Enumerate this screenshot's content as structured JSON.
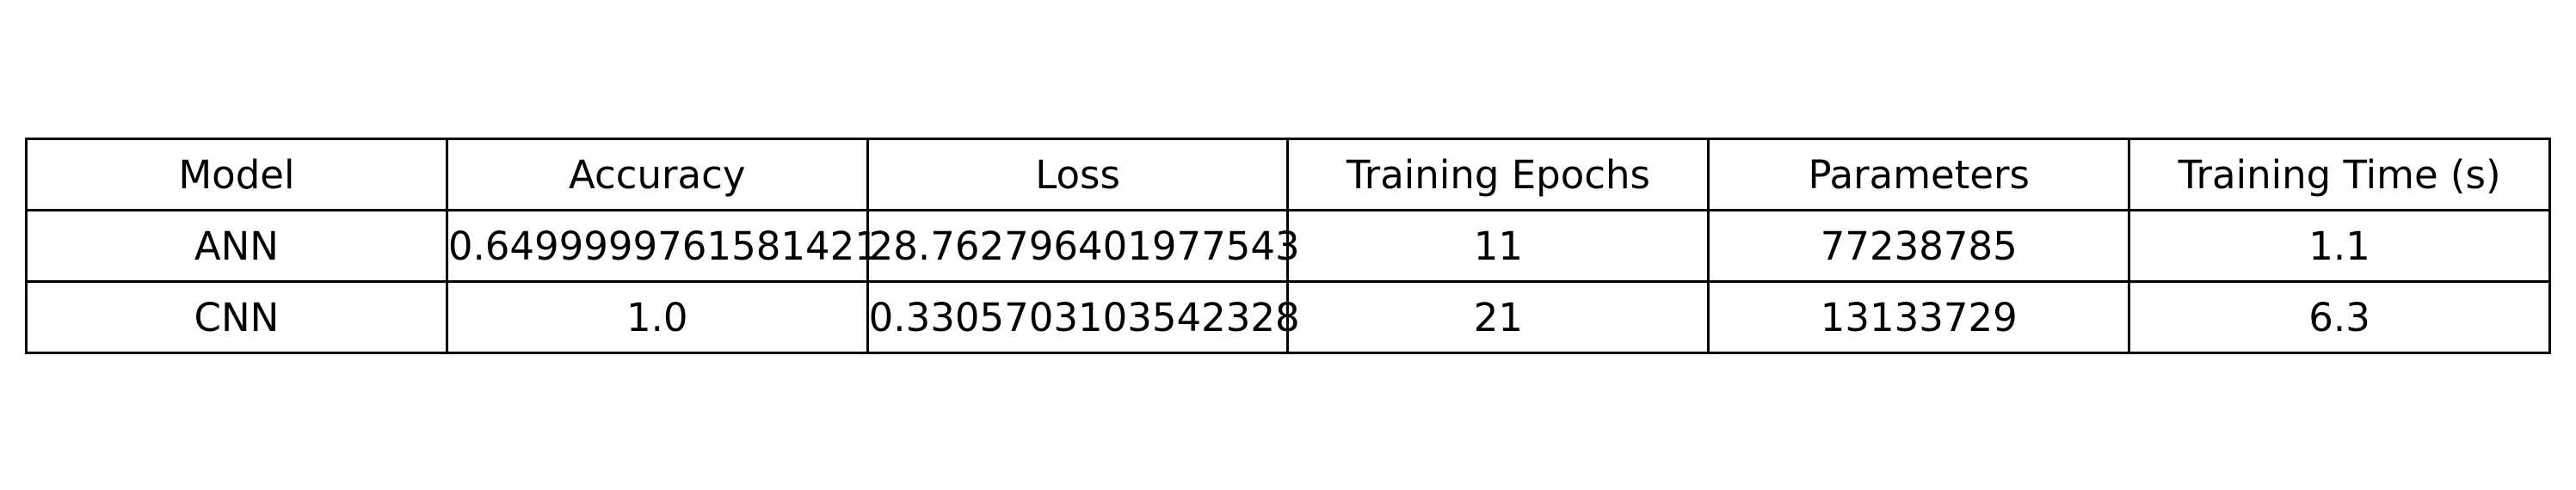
{
  "chart_data": {
    "type": "table",
    "columns": [
      "Model",
      "Accuracy",
      "Loss",
      "Training Epochs",
      "Parameters",
      "Training Time (s)"
    ],
    "rows": [
      [
        "ANN",
        "0.6499999761581421",
        "28.762796401977543",
        "11",
        "77238785",
        "1.1"
      ],
      [
        "CNN",
        "1.0",
        "0.3305703103542328",
        "21",
        "13133729",
        "6.3"
      ]
    ]
  }
}
